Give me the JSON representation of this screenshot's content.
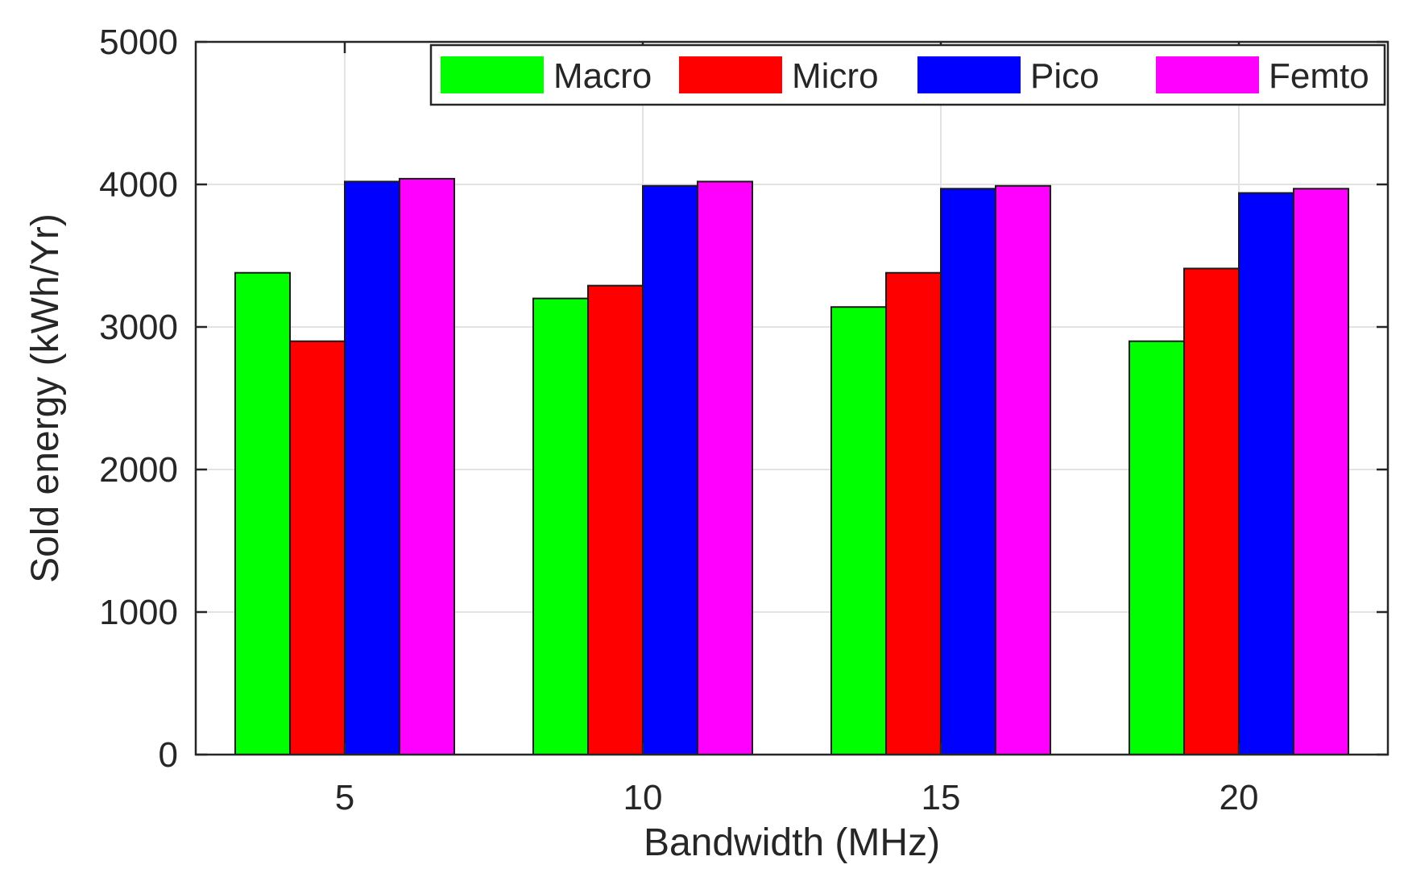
{
  "chart_data": {
    "type": "bar",
    "title": "",
    "xlabel": "Bandwidth (MHz)",
    "ylabel": "Sold energy (kWh/Yr)",
    "ylim": [
      0,
      5000
    ],
    "yticks": [
      0,
      1000,
      2000,
      3000,
      4000,
      5000
    ],
    "categories": [
      "5",
      "10",
      "15",
      "20"
    ],
    "grid": true,
    "legend_position": "top-right",
    "series": [
      {
        "name": "Macro",
        "color": "#00ff00",
        "values": [
          3380,
          3200,
          3140,
          2900
        ]
      },
      {
        "name": "Micro",
        "color": "#ff0000",
        "values": [
          2900,
          3290,
          3380,
          3410
        ]
      },
      {
        "name": "Pico",
        "color": "#0000ff",
        "values": [
          4020,
          3990,
          3970,
          3940
        ]
      },
      {
        "name": "Femto",
        "color": "#ff00ff",
        "values": [
          4040,
          4020,
          3990,
          3970
        ]
      }
    ]
  }
}
